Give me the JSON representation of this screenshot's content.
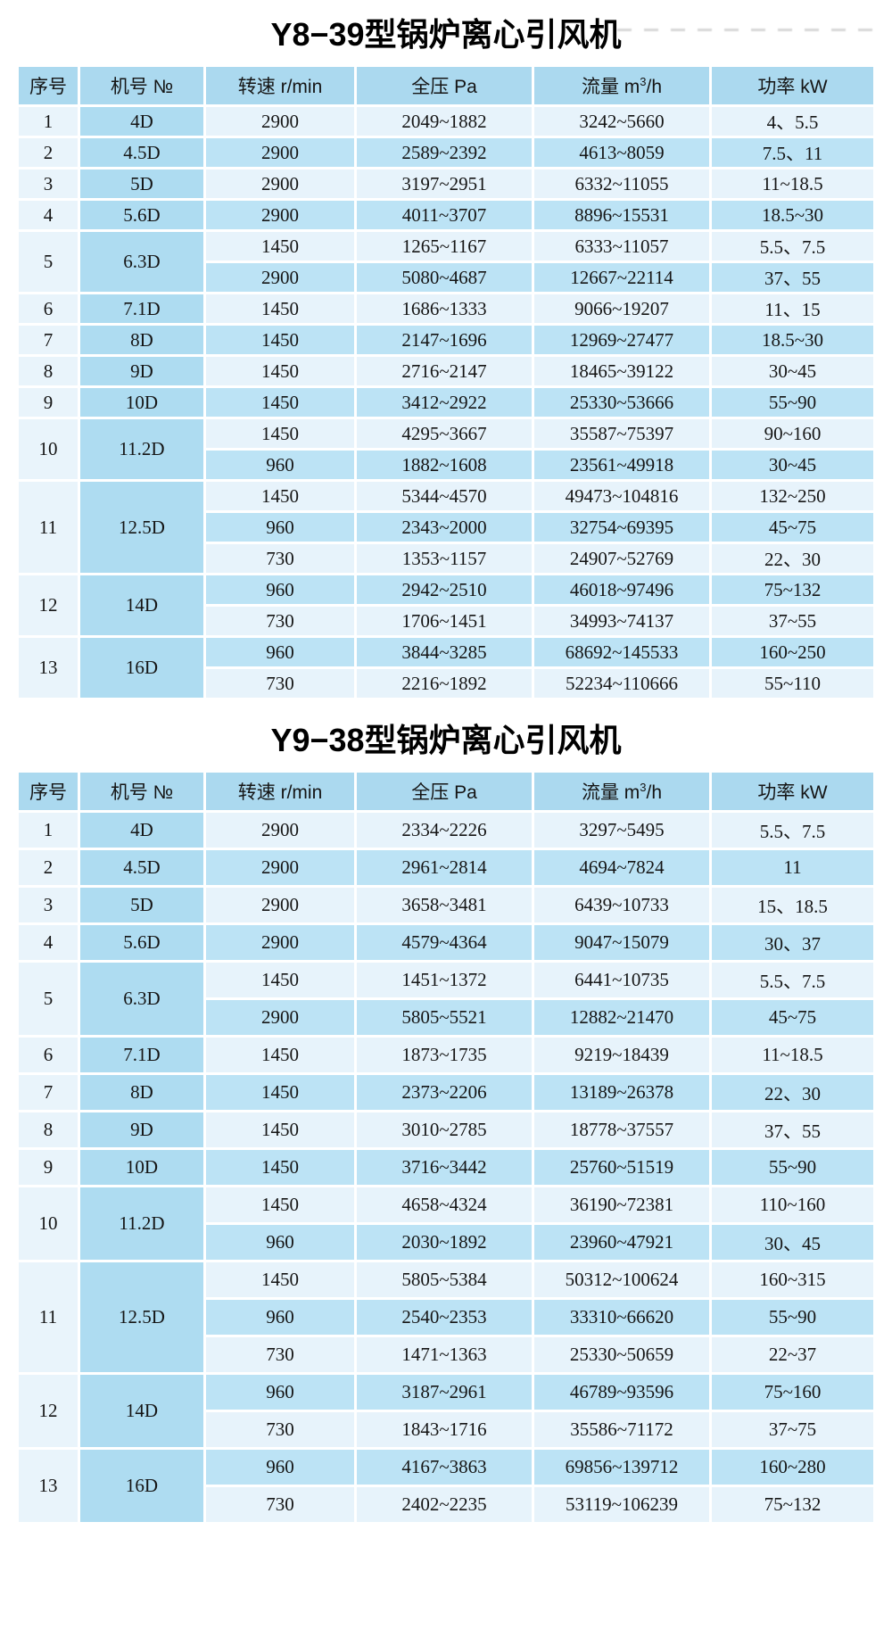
{
  "colors": {
    "header": "#abd9ef",
    "model_col": "#aedcf1",
    "seq_col": "#e9f4fb",
    "row_light": "#e7f3fb",
    "row_medium": "#bce3f5",
    "text": "#151515",
    "page_bg": "#ffffff"
  },
  "tables": [
    {
      "title": "Y8−39型锅炉离心引风机",
      "columns": {
        "seq": "序号",
        "model": "机号 №",
        "speed": "转速 r/min",
        "pressure": "全压 Pa",
        "flow_prefix": "流量 m",
        "flow_sup": "3",
        "flow_suffix": "/h",
        "power": "功率 kW"
      },
      "groups": [
        {
          "seq": "1",
          "model": "4D",
          "rows": [
            [
              "2900",
              "2049~1882",
              "3242~5660",
              "4、5.5"
            ]
          ]
        },
        {
          "seq": "2",
          "model": "4.5D",
          "rows": [
            [
              "2900",
              "2589~2392",
              "4613~8059",
              "7.5、11"
            ]
          ]
        },
        {
          "seq": "3",
          "model": "5D",
          "rows": [
            [
              "2900",
              "3197~2951",
              "6332~11055",
              "11~18.5"
            ]
          ]
        },
        {
          "seq": "4",
          "model": "5.6D",
          "rows": [
            [
              "2900",
              "4011~3707",
              "8896~15531",
              "18.5~30"
            ]
          ]
        },
        {
          "seq": "5",
          "model": "6.3D",
          "rows": [
            [
              "1450",
              "1265~1167",
              "6333~11057",
              "5.5、7.5"
            ],
            [
              "2900",
              "5080~4687",
              "12667~22114",
              "37、55"
            ]
          ]
        },
        {
          "seq": "6",
          "model": "7.1D",
          "rows": [
            [
              "1450",
              "1686~1333",
              "9066~19207",
              "11、15"
            ]
          ]
        },
        {
          "seq": "7",
          "model": "8D",
          "rows": [
            [
              "1450",
              "2147~1696",
              "12969~27477",
              "18.5~30"
            ]
          ]
        },
        {
          "seq": "8",
          "model": "9D",
          "rows": [
            [
              "1450",
              "2716~2147",
              "18465~39122",
              "30~45"
            ]
          ]
        },
        {
          "seq": "9",
          "model": "10D",
          "rows": [
            [
              "1450",
              "3412~2922",
              "25330~53666",
              "55~90"
            ]
          ]
        },
        {
          "seq": "10",
          "model": "11.2D",
          "rows": [
            [
              "1450",
              "4295~3667",
              "35587~75397",
              "90~160"
            ],
            [
              "960",
              "1882~1608",
              "23561~49918",
              "30~45"
            ]
          ]
        },
        {
          "seq": "11",
          "model": "12.5D",
          "rows": [
            [
              "1450",
              "5344~4570",
              "49473~104816",
              "132~250"
            ],
            [
              "960",
              "2343~2000",
              "32754~69395",
              "45~75"
            ],
            [
              "730",
              "1353~1157",
              "24907~52769",
              "22、30"
            ]
          ]
        },
        {
          "seq": "12",
          "model": "14D",
          "rows": [
            [
              "960",
              "2942~2510",
              "46018~97496",
              "75~132"
            ],
            [
              "730",
              "1706~1451",
              "34993~74137",
              "37~55"
            ]
          ]
        },
        {
          "seq": "13",
          "model": "16D",
          "rows": [
            [
              "960",
              "3844~3285",
              "68692~145533",
              "160~250"
            ],
            [
              "730",
              "2216~1892",
              "52234~110666",
              "55~110"
            ]
          ]
        }
      ]
    },
    {
      "title": "Y9−38型锅炉离心引风机",
      "columns": {
        "seq": "序号",
        "model": "机号 №",
        "speed": "转速 r/min",
        "pressure": "全压 Pa",
        "flow_prefix": "流量 m",
        "flow_sup": "3",
        "flow_suffix": "/h",
        "power": "功率 kW"
      },
      "groups": [
        {
          "seq": "1",
          "model": "4D",
          "rows": [
            [
              "2900",
              "2334~2226",
              "3297~5495",
              "5.5、7.5"
            ]
          ]
        },
        {
          "seq": "2",
          "model": "4.5D",
          "rows": [
            [
              "2900",
              "2961~2814",
              "4694~7824",
              "11"
            ]
          ]
        },
        {
          "seq": "3",
          "model": "5D",
          "rows": [
            [
              "2900",
              "3658~3481",
              "6439~10733",
              "15、18.5"
            ]
          ]
        },
        {
          "seq": "4",
          "model": "5.6D",
          "rows": [
            [
              "2900",
              "4579~4364",
              "9047~15079",
              "30、37"
            ]
          ]
        },
        {
          "seq": "5",
          "model": "6.3D",
          "rows": [
            [
              "1450",
              "1451~1372",
              "6441~10735",
              "5.5、7.5"
            ],
            [
              "2900",
              "5805~5521",
              "12882~21470",
              "45~75"
            ]
          ]
        },
        {
          "seq": "6",
          "model": "7.1D",
          "rows": [
            [
              "1450",
              "1873~1735",
              "9219~18439",
              "11~18.5"
            ]
          ]
        },
        {
          "seq": "7",
          "model": "8D",
          "rows": [
            [
              "1450",
              "2373~2206",
              "13189~26378",
              "22、30"
            ]
          ]
        },
        {
          "seq": "8",
          "model": "9D",
          "rows": [
            [
              "1450",
              "3010~2785",
              "18778~37557",
              "37、55"
            ]
          ]
        },
        {
          "seq": "9",
          "model": "10D",
          "rows": [
            [
              "1450",
              "3716~3442",
              "25760~51519",
              "55~90"
            ]
          ]
        },
        {
          "seq": "10",
          "model": "11.2D",
          "rows": [
            [
              "1450",
              "4658~4324",
              "36190~72381",
              "110~160"
            ],
            [
              "960",
              "2030~1892",
              "23960~47921",
              "30、45"
            ]
          ]
        },
        {
          "seq": "11",
          "model": "12.5D",
          "rows": [
            [
              "1450",
              "5805~5384",
              "50312~100624",
              "160~315"
            ],
            [
              "960",
              "2540~2353",
              "33310~66620",
              "55~90"
            ],
            [
              "730",
              "1471~1363",
              "25330~50659",
              "22~37"
            ]
          ]
        },
        {
          "seq": "12",
          "model": "14D",
          "rows": [
            [
              "960",
              "3187~2961",
              "46789~93596",
              "75~160"
            ],
            [
              "730",
              "1843~1716",
              "35586~71172",
              "37~75"
            ]
          ]
        },
        {
          "seq": "13",
          "model": "16D",
          "rows": [
            [
              "960",
              "4167~3863",
              "69856~139712",
              "160~280"
            ],
            [
              "730",
              "2402~2235",
              "53119~106239",
              "75~132"
            ]
          ]
        }
      ]
    }
  ]
}
